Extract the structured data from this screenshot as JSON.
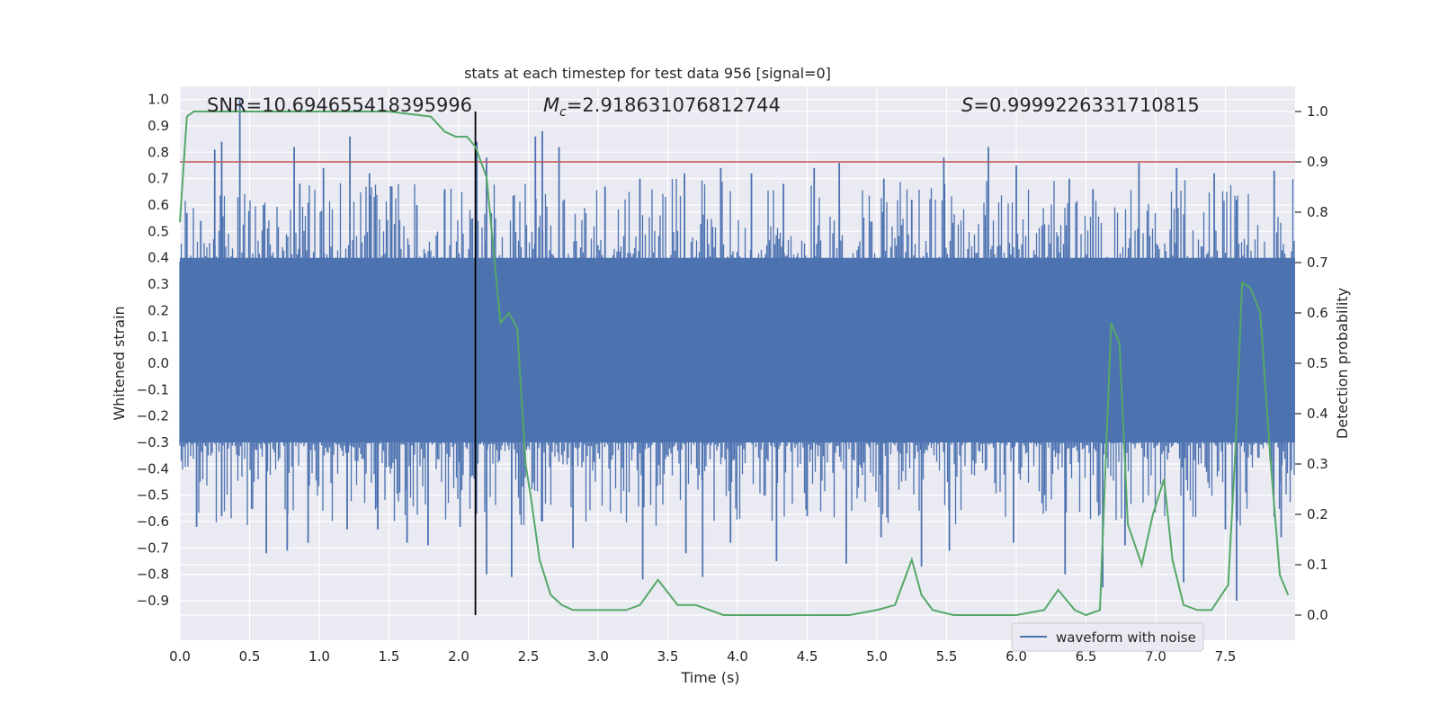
{
  "chart_data": {
    "type": "line",
    "title": "stats at each timestep for test data 956 [signal=0]",
    "xlabel": "Time (s)",
    "ylabel": "Whitened strain",
    "y2label": "Detection probability",
    "xlim": [
      0.0,
      8.0
    ],
    "ylim": [
      -1.05,
      1.05
    ],
    "y2lim": [
      -0.05,
      1.05
    ],
    "x_ticks": [
      0.0,
      0.5,
      1.0,
      1.5,
      2.0,
      2.5,
      3.0,
      3.5,
      4.0,
      4.5,
      5.0,
      5.5,
      6.0,
      6.5,
      7.0,
      7.5
    ],
    "x_tick_labels": [
      "0.0",
      "0.5",
      "1.0",
      "1.5",
      "2.0",
      "2.5",
      "3.0",
      "3.5",
      "4.0",
      "4.5",
      "5.0",
      "5.5",
      "6.0",
      "6.5",
      "7.0",
      "7.5"
    ],
    "y_ticks": [
      1.0,
      0.9,
      0.8,
      0.7,
      0.6,
      0.5,
      0.4,
      0.3,
      0.2,
      0.1,
      0.0,
      -0.1,
      -0.2,
      -0.3,
      -0.4,
      -0.5,
      -0.6,
      -0.7,
      -0.8,
      -0.9
    ],
    "y_tick_labels": [
      "1.0",
      "0.9",
      "0.8",
      "0.7",
      "0.6",
      "0.5",
      "0.4",
      "0.3",
      "0.2",
      "0.1",
      "0.0",
      "−0.1",
      "−0.2",
      "−0.3",
      "−0.4",
      "−0.5",
      "−0.6",
      "−0.7",
      "−0.8",
      "−0.9"
    ],
    "y2_ticks": [
      1.0,
      0.9,
      0.8,
      0.7,
      0.6,
      0.5,
      0.4,
      0.3,
      0.2,
      0.1,
      0.0
    ],
    "y2_tick_labels": [
      "1.0",
      "0.9",
      "0.8",
      "0.7",
      "0.6",
      "0.5",
      "0.4",
      "0.3",
      "0.2",
      "0.1",
      "0.0"
    ],
    "grid": true,
    "legend": {
      "placement": "lower-right",
      "entries": [
        {
          "label": "waveform with noise",
          "color": "#4c72b0"
        }
      ]
    },
    "annotations": [
      {
        "label": "SNR",
        "value": "=10.694655418395996"
      },
      {
        "label": "M",
        "subscript": "c",
        "value": "=2.918631076812744"
      },
      {
        "label": "S",
        "value": "=0.9999226331710815"
      }
    ],
    "series": [
      {
        "name": "waveform with noise",
        "axis": "left",
        "color": "#4c72b0",
        "description_values": {
          "sample_rate_hz": 2048,
          "core_band": [
            -0.3,
            0.4
          ],
          "max_peak": 1.0,
          "min_trough": -0.9
        },
        "peaks": [
          [
            0.05,
            0.57
          ],
          [
            0.15,
            0.54
          ],
          [
            0.25,
            0.81
          ],
          [
            0.3,
            0.84
          ],
          [
            0.43,
            1.0
          ],
          [
            0.6,
            0.6
          ],
          [
            0.82,
            0.82
          ],
          [
            0.86,
            0.68
          ],
          [
            1.03,
            0.74
          ],
          [
            1.22,
            0.86
          ],
          [
            1.36,
            0.72
          ],
          [
            1.52,
            0.67
          ],
          [
            1.7,
            0.6
          ],
          [
            1.9,
            0.66
          ],
          [
            2.13,
            0.84
          ],
          [
            2.2,
            0.78
          ],
          [
            2.55,
            0.86
          ],
          [
            2.6,
            0.88
          ],
          [
            2.72,
            0.82
          ],
          [
            3.05,
            0.67
          ],
          [
            3.3,
            0.7
          ],
          [
            3.62,
            0.72
          ],
          [
            3.88,
            0.74
          ],
          [
            4.1,
            0.72
          ],
          [
            4.33,
            0.68
          ],
          [
            4.55,
            0.74
          ],
          [
            4.73,
            0.76
          ],
          [
            5.05,
            0.7
          ],
          [
            5.25,
            0.62
          ],
          [
            5.48,
            0.78
          ],
          [
            5.8,
            0.82
          ],
          [
            6.0,
            0.75
          ],
          [
            6.38,
            0.7
          ],
          [
            6.55,
            0.66
          ],
          [
            6.88,
            0.76
          ],
          [
            7.15,
            0.74
          ],
          [
            7.42,
            0.72
          ],
          [
            7.58,
            0.62
          ],
          [
            7.85,
            0.73
          ]
        ],
        "troughs": [
          [
            0.12,
            -0.62
          ],
          [
            0.3,
            -0.58
          ],
          [
            0.62,
            -0.72
          ],
          [
            0.77,
            -0.71
          ],
          [
            0.92,
            -0.68
          ],
          [
            1.2,
            -0.63
          ],
          [
            1.42,
            -0.63
          ],
          [
            1.63,
            -0.68
          ],
          [
            1.78,
            -0.69
          ],
          [
            2.01,
            -0.62
          ],
          [
            2.2,
            -0.8
          ],
          [
            2.38,
            -0.81
          ],
          [
            2.6,
            -0.6
          ],
          [
            2.82,
            -0.7
          ],
          [
            3.32,
            -0.82
          ],
          [
            3.63,
            -0.72
          ],
          [
            3.75,
            -0.81
          ],
          [
            3.95,
            -0.68
          ],
          [
            4.28,
            -0.75
          ],
          [
            4.5,
            -0.58
          ],
          [
            4.78,
            -0.76
          ],
          [
            5.03,
            -0.66
          ],
          [
            5.32,
            -0.77
          ],
          [
            5.52,
            -0.71
          ],
          [
            5.98,
            -0.68
          ],
          [
            6.35,
            -0.8
          ],
          [
            6.62,
            -0.85
          ],
          [
            6.78,
            -0.69
          ],
          [
            7.2,
            -0.83
          ],
          [
            7.5,
            -0.63
          ],
          [
            7.58,
            -0.9
          ],
          [
            7.9,
            -0.66
          ]
        ]
      },
      {
        "name": "",
        "axis": "right",
        "color": "#55a868",
        "x": [
          0.0,
          0.05,
          0.1,
          0.3,
          0.6,
          0.9,
          1.2,
          1.5,
          1.8,
          1.9,
          1.98,
          2.06,
          2.12,
          2.2,
          2.3,
          2.36,
          2.42,
          2.48,
          2.52,
          2.58,
          2.66,
          2.74,
          2.82,
          2.9,
          3.0,
          3.2,
          3.3,
          3.43,
          3.57,
          3.7,
          3.9,
          4.1,
          4.5,
          4.8,
          5.0,
          5.13,
          5.25,
          5.32,
          5.4,
          5.55,
          5.75,
          6.0,
          6.2,
          6.3,
          6.42,
          6.5,
          6.6,
          6.68,
          6.74,
          6.8,
          6.9,
          6.98,
          7.06,
          7.12,
          7.2,
          7.3,
          7.4,
          7.52,
          7.57,
          7.62,
          7.68,
          7.75,
          7.82,
          7.89,
          7.95
        ],
        "y": [
          0.78,
          0.99,
          1.0,
          1.0,
          1.0,
          1.0,
          1.0,
          1.0,
          0.99,
          0.96,
          0.95,
          0.95,
          0.93,
          0.87,
          0.58,
          0.6,
          0.57,
          0.3,
          0.23,
          0.11,
          0.04,
          0.02,
          0.01,
          0.01,
          0.01,
          0.01,
          0.02,
          0.07,
          0.02,
          0.02,
          0.0,
          0.0,
          0.0,
          0.0,
          0.01,
          0.02,
          0.11,
          0.04,
          0.01,
          0.0,
          0.0,
          0.0,
          0.01,
          0.05,
          0.01,
          0.0,
          0.01,
          0.58,
          0.54,
          0.18,
          0.1,
          0.2,
          0.27,
          0.11,
          0.02,
          0.01,
          0.01,
          0.06,
          0.32,
          0.66,
          0.65,
          0.6,
          0.32,
          0.08,
          0.04
        ]
      },
      {
        "name": "",
        "axis": "right",
        "color": "#c44e52",
        "type": "hline",
        "value": 0.9
      },
      {
        "name": "",
        "axis": "right",
        "color": "#000000",
        "type": "vline",
        "value": 2.12
      }
    ]
  }
}
